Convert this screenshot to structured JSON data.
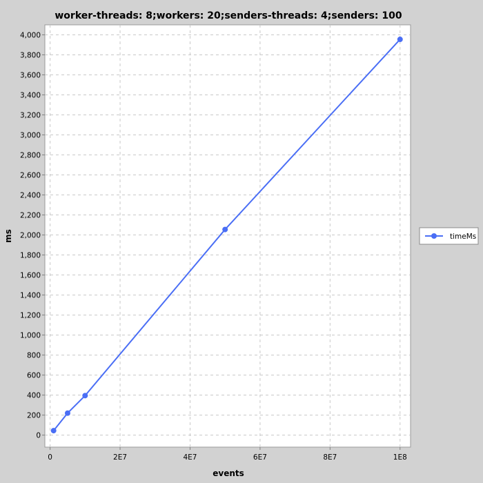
{
  "chart_data": {
    "type": "line",
    "title": "worker-threads: 8;workers: 20;senders-threads: 4;senders: 100",
    "xlabel": "events",
    "ylabel": "ms",
    "xlim": [
      -1500000,
      103000000
    ],
    "ylim": [
      -120,
      4100
    ],
    "x_ticks": [
      0,
      20000000,
      40000000,
      60000000,
      80000000,
      100000000
    ],
    "x_tick_labels": [
      "0",
      "2E7",
      "4E7",
      "6E7",
      "8E7",
      "1E8"
    ],
    "y_ticks": [
      0,
      200,
      400,
      600,
      800,
      1000,
      1200,
      1400,
      1600,
      1800,
      2000,
      2200,
      2400,
      2600,
      2800,
      3000,
      3200,
      3400,
      3600,
      3800,
      4000
    ],
    "y_tick_labels": [
      "0",
      "200",
      "400",
      "600",
      "800",
      "1,000",
      "1,200",
      "1,400",
      "1,600",
      "1,800",
      "2,000",
      "2,200",
      "2,400",
      "2,600",
      "2,800",
      "3,000",
      "3,200",
      "3,400",
      "3,600",
      "3,800",
      "4,000"
    ],
    "grid": true,
    "legend_position": "right",
    "series": [
      {
        "name": "timeMs",
        "color": "#4a6ef5",
        "x": [
          1000000,
          5000000,
          10000000,
          50000000,
          100000000
        ],
        "y": [
          45,
          220,
          395,
          2055,
          3955
        ]
      }
    ]
  }
}
